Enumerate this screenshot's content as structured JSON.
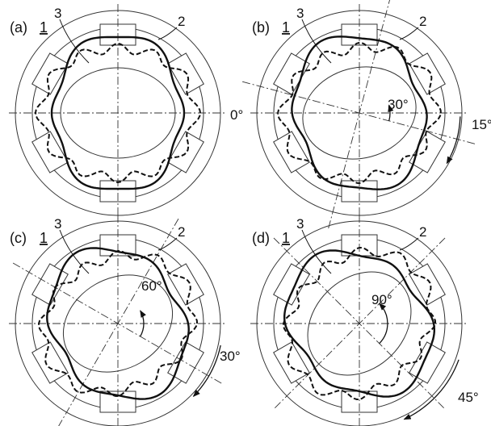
{
  "panels": [
    {
      "id": "a",
      "label": "(a)",
      "part_numbers": {
        "device": "1",
        "rotor": "3",
        "stator": "2"
      },
      "inner_angle": "",
      "outer_angle": "0°",
      "rotation_deg": 0
    },
    {
      "id": "b",
      "label": "(b)",
      "part_numbers": {
        "device": "1",
        "rotor": "3",
        "stator": "2"
      },
      "inner_angle": "30°",
      "outer_angle": "15°",
      "rotation_deg": 15
    },
    {
      "id": "c",
      "label": "(c)",
      "part_numbers": {
        "device": "1",
        "rotor": "3",
        "stator": "2"
      },
      "inner_angle": "60°",
      "outer_angle": "30°",
      "rotation_deg": 30
    },
    {
      "id": "d",
      "label": "(d)",
      "part_numbers": {
        "device": "1",
        "rotor": "3",
        "stator": "2"
      },
      "inner_angle": "90°",
      "outer_angle": "45°",
      "rotation_deg": 45
    }
  ]
}
